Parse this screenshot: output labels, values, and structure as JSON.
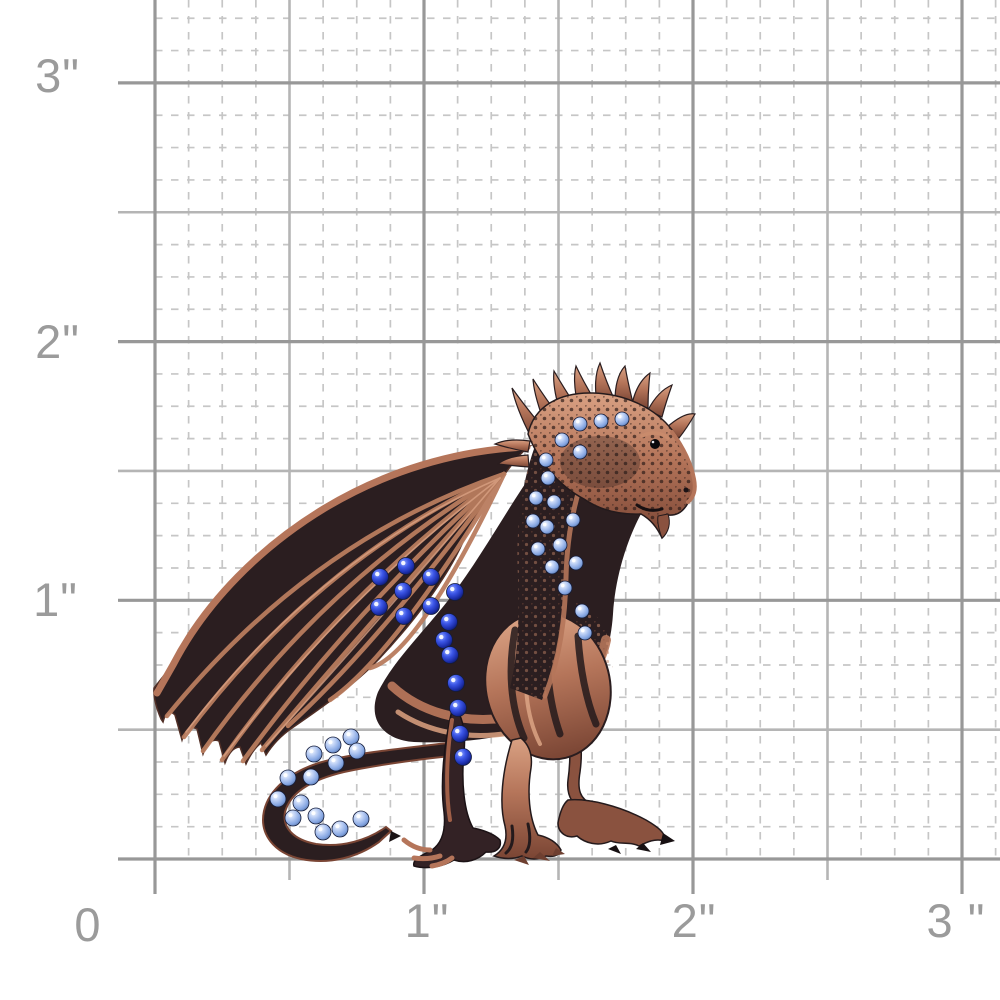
{
  "ruler": {
    "unit": "inches",
    "y_axis_labels": [
      "3\"",
      "2\"",
      "1\""
    ],
    "x_axis_labels": [
      "0",
      "1\"",
      "2\"",
      "3 \""
    ],
    "colors": {
      "inch_line": "#989898",
      "half_inch_line": "#b5b5b5",
      "eighth_dash_line": "#c6c6c6",
      "label_text": "#9b9b9b",
      "background": "#ffffff"
    }
  },
  "subject": {
    "name": "antique copper dragon brooch with blue crystals",
    "facing": "right",
    "colors": {
      "copper_light": "#d9a183",
      "copper": "#b5755a",
      "copper_dark": "#7a4534",
      "metal_dark": "#2b1e20",
      "royal_blue_crystal": "#2e4bd4",
      "light_sapphire_crystal": "#a9c4f0"
    },
    "crystal_counts": {
      "royal_blue_body": 15,
      "light_blue_neck": 19,
      "light_blue_tail": 14
    }
  }
}
